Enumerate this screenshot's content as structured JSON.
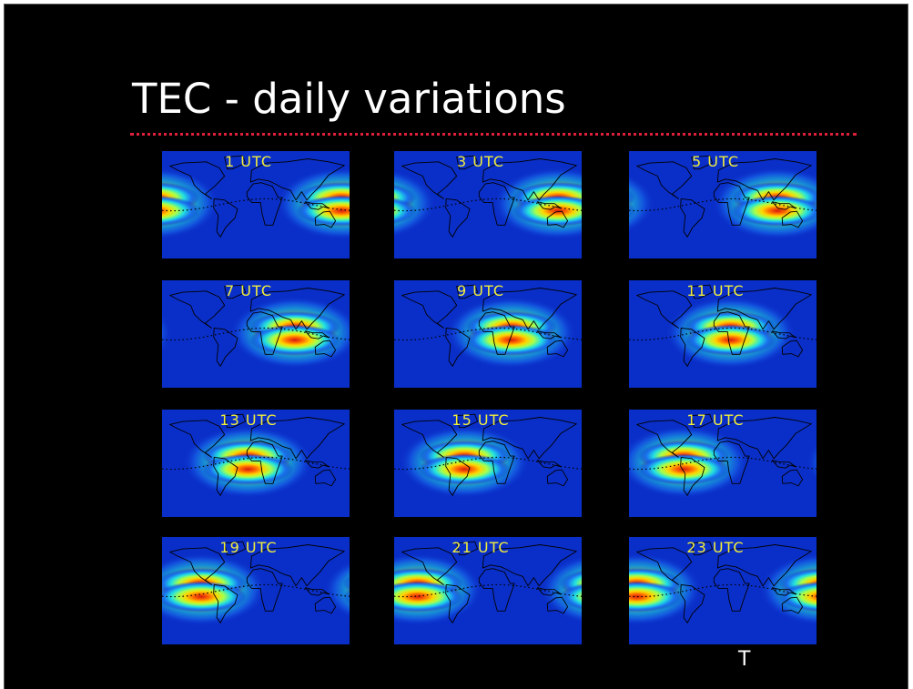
{
  "slide": {
    "title": "TEC - daily variations",
    "corner_letter": "T",
    "accent_color": "#e0203a",
    "label_color": "#f2ee3a"
  },
  "maps": [
    {
      "label": "1 UTC",
      "subsolar_longitude_deg": 165
    },
    {
      "label": "3 UTC",
      "subsolar_longitude_deg": 135
    },
    {
      "label": "5 UTC",
      "subsolar_longitude_deg": 105
    },
    {
      "label": "7 UTC",
      "subsolar_longitude_deg": 75
    },
    {
      "label": "9 UTC",
      "subsolar_longitude_deg": 45
    },
    {
      "label": "11 UTC",
      "subsolar_longitude_deg": 15
    },
    {
      "label": "13 UTC",
      "subsolar_longitude_deg": -15
    },
    {
      "label": "15 UTC",
      "subsolar_longitude_deg": -45
    },
    {
      "label": "17 UTC",
      "subsolar_longitude_deg": -75
    },
    {
      "label": "19 UTC",
      "subsolar_longitude_deg": -105
    },
    {
      "label": "21 UTC",
      "subsolar_longitude_deg": -135
    },
    {
      "label": "23 UTC",
      "subsolar_longitude_deg": -165
    }
  ]
}
